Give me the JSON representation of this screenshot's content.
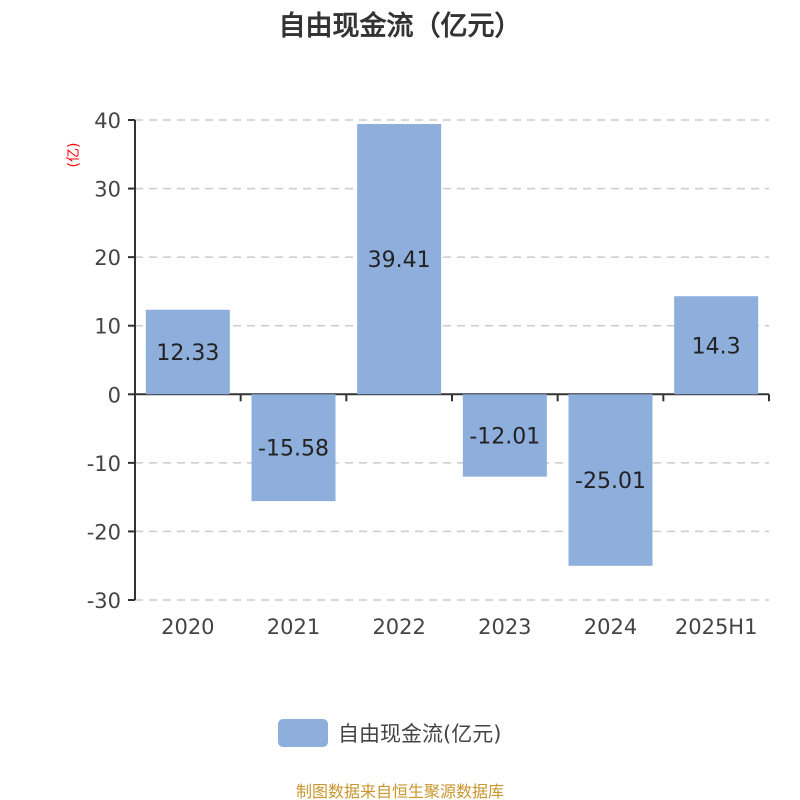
{
  "title": "自由现金流（亿元）",
  "source": "制图数据来自恒生聚源数据库",
  "chart_data": {
    "type": "bar",
    "title": "自由现金流（亿元）",
    "ylabel": "(亿)",
    "categories": [
      "2020",
      "2021",
      "2022",
      "2023",
      "2024",
      "2025H1"
    ],
    "series": [
      {
        "name": "自由现金流(亿元)",
        "values": [
          12.33,
          -15.58,
          39.41,
          -12.01,
          -25.01,
          14.3
        ],
        "labels": [
          "12.33",
          "-15.58",
          "39.41",
          "-12.01",
          "-25.01",
          "14.3"
        ],
        "color": "#8eaedb"
      }
    ],
    "ylim": [
      -30,
      40
    ],
    "yticks": [
      40,
      30,
      20,
      10,
      0,
      -10,
      -20,
      -30
    ],
    "grid": true,
    "legend": "bottom",
    "ylabel_color": "#ff0000"
  }
}
